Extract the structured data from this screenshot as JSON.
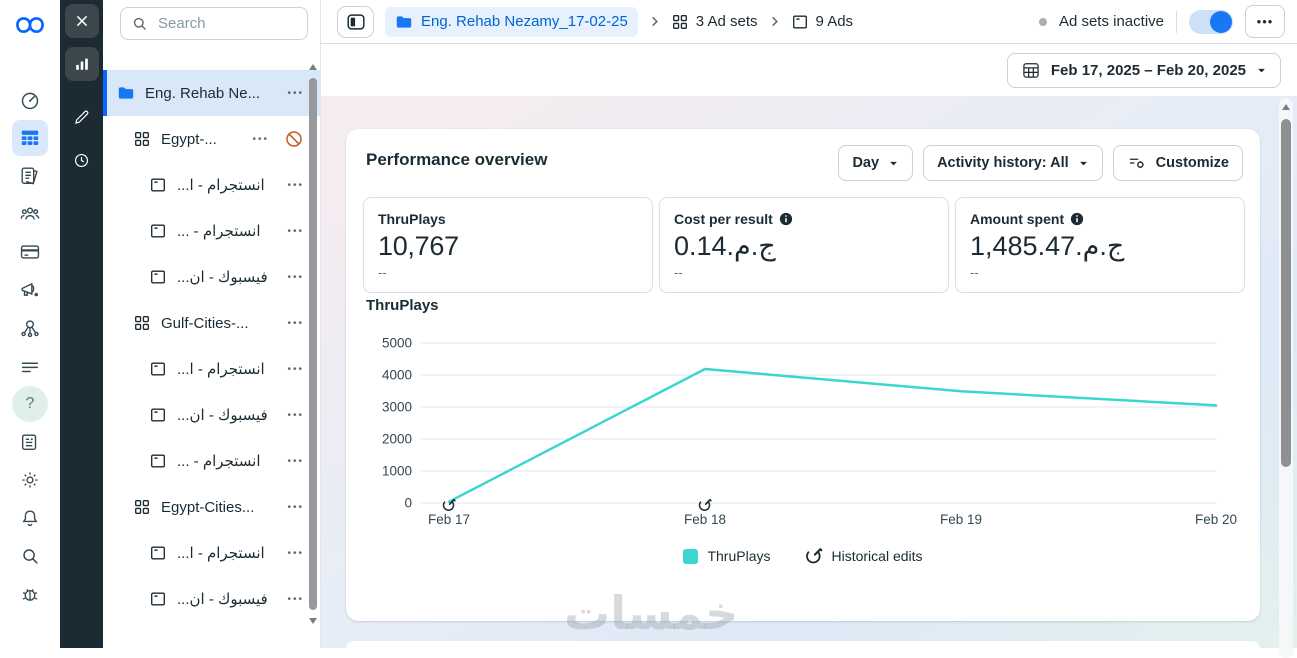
{
  "colors": {
    "accent_blue": "#0866FF",
    "link_blue": "#0064D1",
    "line_teal": "#3BD6CF",
    "inactive_orange": "#C45B28",
    "dark": "#1C2B33"
  },
  "ui": {
    "dots": "•••"
  },
  "left_rail": {
    "icons": [
      "gauge",
      "table",
      "pages",
      "people",
      "card",
      "megaphone",
      "network",
      "menu",
      "help",
      "news",
      "gear",
      "bell",
      "search",
      "bug"
    ],
    "active_icon": "table",
    "help_glyph": "?"
  },
  "dark_toolbar": {
    "buttons": [
      {
        "icon": "close",
        "boxed": true
      },
      {
        "icon": "bars",
        "boxed": true
      },
      {
        "icon": "pencil",
        "boxed": false
      },
      {
        "icon": "clock",
        "boxed": false
      }
    ]
  },
  "sidebar": {
    "search_placeholder": "Search",
    "tree": [
      {
        "type": "campaign",
        "label": "Eng. Rehab Ne...",
        "selected": true
      },
      {
        "type": "adset",
        "label": "Egypt-...",
        "inactive_badge": true
      },
      {
        "type": "ad",
        "label": "انستجرام - ا...",
        "rtl": true
      },
      {
        "type": "ad",
        "label": "انستجرام - ...",
        "rtl": true
      },
      {
        "type": "ad",
        "label": "فيسبوك - ان...",
        "rtl": true
      },
      {
        "type": "adset",
        "label": "Gulf-Cities-..."
      },
      {
        "type": "ad",
        "label": "انستجرام - ا...",
        "rtl": true
      },
      {
        "type": "ad",
        "label": "فيسبوك - ان...",
        "rtl": true
      },
      {
        "type": "ad",
        "label": "انستجرام - ...",
        "rtl": true
      },
      {
        "type": "adset",
        "label": "Egypt-Cities..."
      },
      {
        "type": "ad",
        "label": "انستجرام - ا...",
        "rtl": true
      },
      {
        "type": "ad",
        "label": "فيسبوك - ان...",
        "rtl": true
      }
    ]
  },
  "topbar": {
    "breadcrumb": [
      {
        "icon": "folder",
        "label": "Eng. Rehab Nezamy_17-02-25",
        "pill": true
      },
      {
        "icon": "adset",
        "label": "3 Ad sets"
      },
      {
        "icon": "ad",
        "label": "9 Ads"
      }
    ],
    "status_label": "Ad sets inactive",
    "toggle_on": true
  },
  "toolbar": {
    "date_range": "Feb 17, 2025 – Feb 20, 2025"
  },
  "overview": {
    "title": "Performance overview",
    "controls": {
      "day": "Day",
      "activity": "Activity history: All",
      "customize": "Customize"
    },
    "metrics": [
      {
        "label": "ThruPlays",
        "value": "10,767",
        "sub": "--",
        "info": false,
        "bidi": false
      },
      {
        "label": "Cost per result",
        "value": "0.14.م.ج",
        "sub": "--",
        "info": true,
        "bidi": true
      },
      {
        "label": "Amount spent",
        "value": "1,485.47.م.ج",
        "sub": "--",
        "info": true,
        "bidi": true
      }
    ],
    "legend": [
      {
        "type": "swatch",
        "label": "ThruPlays"
      },
      {
        "type": "edit-icon",
        "label": "Historical edits"
      }
    ]
  },
  "chart_data": {
    "type": "line",
    "title": "ThruPlays",
    "x": [
      "Feb 17",
      "Feb 18",
      "Feb 19",
      "Feb 20"
    ],
    "series": [
      {
        "name": "ThruPlays",
        "values": [
          40,
          4187,
          3490,
          3050
        ],
        "color": "#3BD6CF"
      }
    ],
    "ylim": [
      0,
      5000
    ],
    "yticks": [
      0,
      1000,
      2000,
      3000,
      4000,
      5000
    ],
    "grid": true,
    "legend_position": "bottom",
    "historical_edits_x": [
      "Feb 17",
      "Feb 18"
    ]
  },
  "watermark": {
    "text": "خمسات"
  }
}
